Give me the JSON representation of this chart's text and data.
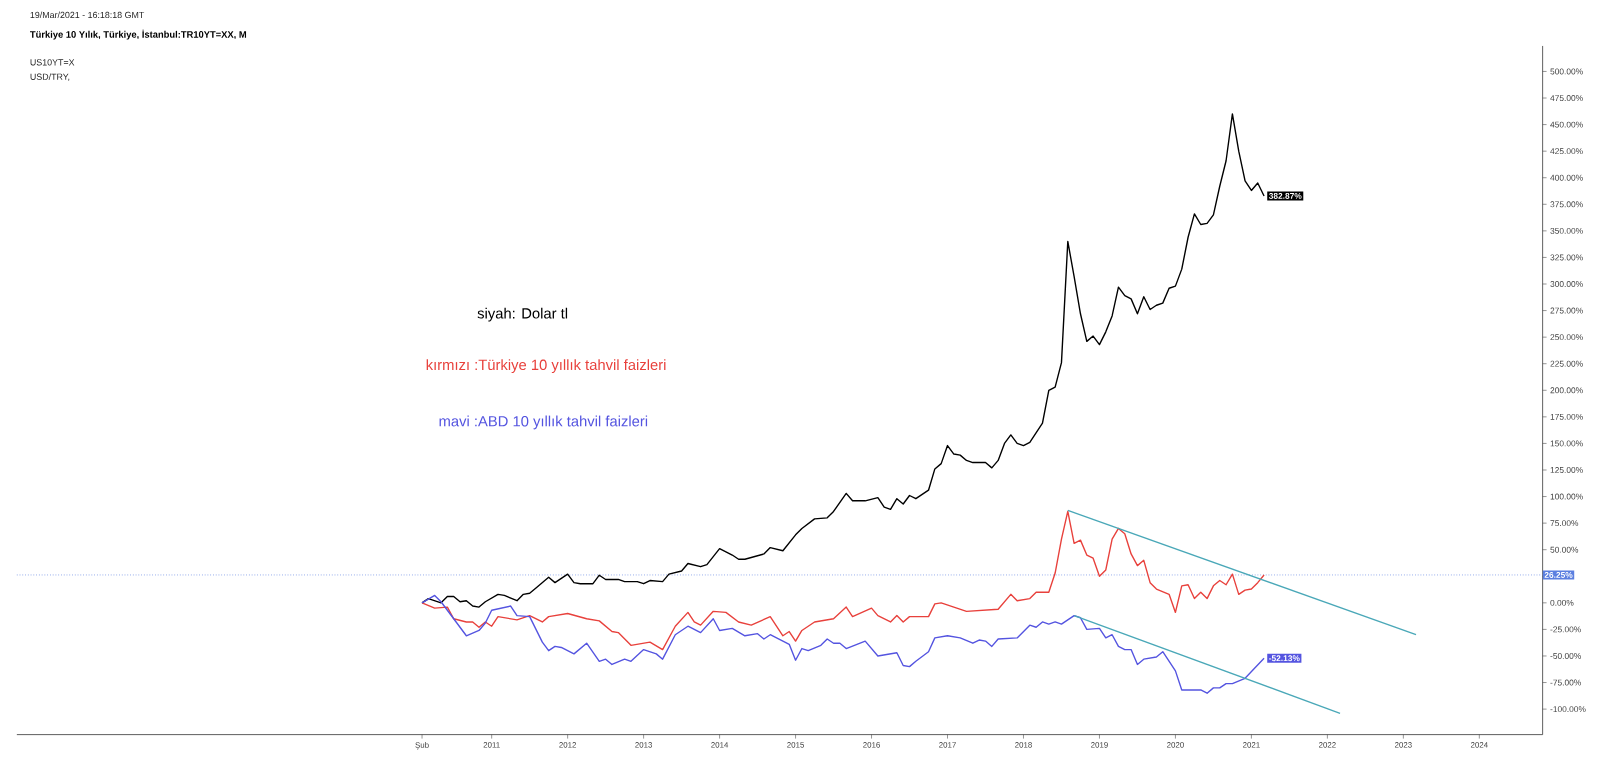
{
  "chart_data": {
    "type": "line",
    "title": "Türkiye 10 Yılık, Türkiye, İstanbul:TR10YT=XX, M",
    "annotations": [
      "19/Mar/2021 - 16:18:18 GMT",
      "US10YT=X",
      "USD/TRY,"
    ],
    "xlim": [
      "2004-10",
      "2024-11"
    ],
    "ylim": [
      -124,
      524
    ],
    "xticks": [
      {
        "value": "2010-02",
        "label": "Şub"
      },
      "2011",
      "2012",
      "2013",
      "2014",
      "2015",
      "2016",
      "2017",
      "2018",
      "2019",
      "2020",
      "2021",
      "2022",
      "2023",
      "2024"
    ],
    "yticks": [
      {
        "value": -100,
        "label": "-100.00%"
      },
      {
        "value": -75,
        "label": "-75.00%"
      },
      {
        "value": -50,
        "label": "-50.00%"
      },
      {
        "value": -25,
        "label": "-25.00%"
      },
      {
        "value": 0,
        "label": "0.00%"
      },
      {
        "value": 25,
        "label": null
      },
      {
        "value": 50,
        "label": "50.00%"
      },
      {
        "value": 75,
        "label": "75.00%"
      },
      {
        "value": 100,
        "label": "100.00%"
      },
      {
        "value": 125,
        "label": "125.00%"
      },
      {
        "value": 150,
        "label": "150.00%"
      },
      {
        "value": 175,
        "label": "175.00%"
      },
      {
        "value": 200,
        "label": "200.00%"
      },
      {
        "value": 225,
        "label": "225.00%"
      },
      {
        "value": 250,
        "label": "250.00%"
      },
      {
        "value": 275,
        "label": "275.00%"
      },
      {
        "value": 300,
        "label": "300.00%"
      },
      {
        "value": 325,
        "label": "325.00%"
      },
      {
        "value": 350,
        "label": "350.00%"
      },
      {
        "value": 375,
        "label": "375.00%"
      },
      {
        "value": 400,
        "label": "400.00%"
      },
      {
        "value": 425,
        "label": "425.00%"
      },
      {
        "value": 450,
        "label": "450.00%"
      },
      {
        "value": 475,
        "label": "475.00%"
      },
      {
        "value": 500,
        "label": "500.00%"
      }
    ],
    "grid": false,
    "marker": "none",
    "line_style": "solid",
    "ref_lines": [
      {
        "axis": "y",
        "value": 26.25,
        "label": "26.25%",
        "color": "#5b7fe0",
        "line_style": "dotted"
      }
    ],
    "series": [
      {
        "name": "siyah: Dolar tl",
        "color": "#000000",
        "x": [
          "2010-02",
          "2010-03",
          "2010-05",
          "2010-06",
          "2010-07",
          "2010-08",
          "2010-09",
          "2010-10",
          "2010-11",
          "2010-12",
          "2011-02",
          "2011-03",
          "2011-05",
          "2011-06",
          "2011-07",
          "2011-08",
          "2011-10",
          "2011-11",
          "2012-01",
          "2012-02",
          "2012-03",
          "2012-05",
          "2012-06",
          "2012-07",
          "2012-09",
          "2012-10",
          "2012-12",
          "2013-01",
          "2013-02",
          "2013-04",
          "2013-05",
          "2013-07",
          "2013-08",
          "2013-10",
          "2013-11",
          "2014-01",
          "2014-03",
          "2014-04",
          "2014-05",
          "2014-08",
          "2014-09",
          "2014-11",
          "2015-01",
          "2015-02",
          "2015-04",
          "2015-06",
          "2015-07",
          "2015-09",
          "2015-10",
          "2015-12",
          "2016-02",
          "2016-03",
          "2016-04",
          "2016-05",
          "2016-06",
          "2016-07",
          "2016-08",
          "2016-09",
          "2016-10",
          "2016-11",
          "2016-12",
          "2017-01",
          "2017-02",
          "2017-03",
          "2017-04",
          "2017-05",
          "2017-07",
          "2017-08",
          "2017-09",
          "2017-10",
          "2017-11",
          "2017-12",
          "2018-01",
          "2018-02",
          "2018-04",
          "2018-05",
          "2018-06",
          "2018-07",
          "2018-08",
          "2018-09",
          "2018-10",
          "2018-11",
          "2018-12",
          "2019-01",
          "2019-02",
          "2019-03",
          "2019-04",
          "2019-05",
          "2019-06",
          "2019-07",
          "2019-08",
          "2019-09",
          "2019-10",
          "2019-11",
          "2019-12",
          "2020-01",
          "2020-02",
          "2020-03",
          "2020-04",
          "2020-05",
          "2020-06",
          "2020-07",
          "2020-08",
          "2020-09",
          "2020-10",
          "2020-11",
          "2020-12",
          "2021-01",
          "2021-02",
          "2021-03"
        ],
        "values": [
          0,
          4,
          0,
          6,
          6,
          1,
          2,
          -3,
          -4,
          1,
          8,
          7,
          2,
          8,
          9,
          14,
          24,
          19,
          27,
          19,
          18,
          18,
          26,
          22,
          22,
          20,
          20,
          18,
          21,
          20,
          27,
          30,
          37,
          34,
          36,
          51,
          45,
          41,
          41,
          46,
          52,
          49,
          64,
          70,
          79,
          80,
          86,
          103,
          96,
          96,
          99,
          90,
          88,
          98,
          93,
          101,
          98,
          102,
          106,
          126,
          131,
          148,
          140,
          139,
          134,
          132,
          132,
          127,
          134,
          150,
          158,
          150,
          148,
          151,
          169,
          200,
          203,
          226,
          340,
          307,
          272,
          246,
          251,
          243,
          255,
          270,
          297,
          289,
          286,
          272,
          288,
          276,
          280,
          282,
          296,
          298,
          314,
          344,
          366,
          356,
          357,
          365,
          392,
          416,
          460,
          425,
          397,
          388,
          395,
          382.87
        ],
        "value_labels": [
          null,
          null,
          null,
          null,
          null,
          null,
          null,
          null,
          null,
          null,
          null,
          null,
          null,
          null,
          null,
          null,
          null,
          null,
          null,
          null,
          null,
          null,
          null,
          null,
          null,
          null,
          null,
          null,
          null,
          null,
          null,
          null,
          null,
          null,
          null,
          null,
          null,
          null,
          null,
          null,
          null,
          null,
          null,
          null,
          null,
          null,
          null,
          null,
          null,
          null,
          null,
          null,
          null,
          null,
          null,
          null,
          null,
          null,
          null,
          null,
          null,
          null,
          null,
          null,
          null,
          null,
          null,
          null,
          null,
          null,
          null,
          null,
          null,
          null,
          null,
          null,
          null,
          null,
          null,
          null,
          null,
          null,
          null,
          null,
          null,
          null,
          null,
          null,
          null,
          null,
          null,
          null,
          null,
          null,
          null,
          null,
          null,
          null,
          null,
          null,
          null,
          null,
          null,
          null,
          null,
          null,
          null,
          null,
          null,
          "382.87%"
        ]
      },
      {
        "name": "kırmızı :Türkiye 10 yıllık tahvil faizleri",
        "color": "#e8413c",
        "x": [
          "2010-02",
          "2010-04",
          "2010-06",
          "2010-07",
          "2010-09",
          "2010-10",
          "2010-11",
          "2010-12",
          "2011-01",
          "2011-02",
          "2011-05",
          "2011-07",
          "2011-09",
          "2011-10",
          "2012-01",
          "2012-04",
          "2012-06",
          "2012-08",
          "2012-09",
          "2012-11",
          "2013-02",
          "2013-04",
          "2013-06",
          "2013-08",
          "2013-09",
          "2013-10",
          "2013-12",
          "2014-02",
          "2014-04",
          "2014-06",
          "2014-09",
          "2014-11",
          "2014-12",
          "2015-01",
          "2015-02",
          "2015-04",
          "2015-07",
          "2015-09",
          "2015-10",
          "2016-01",
          "2016-02",
          "2016-04",
          "2016-05",
          "2016-06",
          "2016-07",
          "2016-10",
          "2016-11",
          "2016-12",
          "2017-02",
          "2017-04",
          "2017-09",
          "2017-11",
          "2017-12",
          "2018-02",
          "2018-03",
          "2018-05",
          "2018-06",
          "2018-07",
          "2018-08",
          "2018-09",
          "2018-10",
          "2018-11",
          "2018-12",
          "2019-01",
          "2019-02",
          "2019-03",
          "2019-04",
          "2019-05",
          "2019-06",
          "2019-07",
          "2019-08",
          "2019-09",
          "2019-10",
          "2019-12",
          "2020-01",
          "2020-02",
          "2020-03",
          "2020-04",
          "2020-05",
          "2020-06",
          "2020-07",
          "2020-08",
          "2020-09",
          "2020-10",
          "2020-11",
          "2020-12",
          "2021-01",
          "2021-02",
          "2021-03"
        ],
        "values": [
          0,
          -5,
          -4,
          -15,
          -18,
          -18,
          -23,
          -18,
          -22,
          -13,
          -16,
          -12,
          -18,
          -13,
          -10,
          -15,
          -17,
          -27,
          -28,
          -40,
          -37,
          -44,
          -22,
          -9,
          -18,
          -21,
          -8,
          -9,
          -18,
          -21,
          -13,
          -31,
          -27,
          -36,
          -26,
          -18,
          -15,
          -4,
          -13,
          -5,
          -12,
          -18,
          -12,
          -18,
          -13,
          -13,
          -1,
          0,
          -4,
          -8,
          -6,
          8,
          2,
          4,
          10,
          10,
          28,
          60,
          86,
          56,
          59,
          45,
          42,
          25,
          31,
          60,
          70,
          65,
          46,
          35,
          40,
          19,
          13,
          8,
          -9,
          16,
          17,
          4,
          10,
          4,
          16,
          21,
          17,
          27,
          8,
          12,
          13,
          19,
          26.25
        ]
      },
      {
        "name": "mavi :ABD 10 yıllık tahvil faizleri",
        "color": "#5454e0",
        "x": [
          "2010-02",
          "2010-04",
          "2010-05",
          "2010-07",
          "2010-09",
          "2010-11",
          "2010-12",
          "2011-01",
          "2011-04",
          "2011-05",
          "2011-07",
          "2011-09",
          "2011-10",
          "2011-11",
          "2011-12",
          "2012-02",
          "2012-04",
          "2012-06",
          "2012-07",
          "2012-08",
          "2012-10",
          "2012-11",
          "2013-01",
          "2013-03",
          "2013-04",
          "2013-06",
          "2013-08",
          "2013-10",
          "2013-12",
          "2014-01",
          "2014-03",
          "2014-05",
          "2014-07",
          "2014-08",
          "2014-09",
          "2014-12",
          "2015-01",
          "2015-02",
          "2015-03",
          "2015-05",
          "2015-06",
          "2015-07",
          "2015-08",
          "2015-09",
          "2015-12",
          "2016-02",
          "2016-05",
          "2016-06",
          "2016-07",
          "2016-08",
          "2016-10",
          "2016-11",
          "2017-01",
          "2017-03",
          "2017-05",
          "2017-06",
          "2017-07",
          "2017-08",
          "2017-09",
          "2017-12",
          "2018-02",
          "2018-03",
          "2018-04",
          "2018-05",
          "2018-06",
          "2018-07",
          "2018-09",
          "2018-10",
          "2018-11",
          "2019-01",
          "2019-02",
          "2019-03",
          "2019-04",
          "2019-05",
          "2019-06",
          "2019-07",
          "2019-08",
          "2019-10",
          "2019-11",
          "2020-01",
          "2020-02",
          "2020-05",
          "2020-06",
          "2020-07",
          "2020-08",
          "2020-09",
          "2020-10",
          "2020-12",
          "2021-03"
        ],
        "values": [
          0,
          7,
          1,
          -15,
          -31,
          -26,
          -19,
          -7,
          -3,
          -12,
          -13,
          -37,
          -45,
          -41,
          -42,
          -48,
          -38,
          -55,
          -53,
          -58,
          -53,
          -55,
          -44,
          -48,
          -53,
          -30,
          -22,
          -28,
          -15,
          -26,
          -24,
          -31,
          -29,
          -34,
          -30,
          -39,
          -54,
          -43,
          -45,
          -40,
          -34,
          -38,
          -38,
          -43,
          -36,
          -50,
          -47,
          -59,
          -60,
          -55,
          -46,
          -33,
          -31,
          -33,
          -38,
          -35,
          -36,
          -41,
          -34,
          -33,
          -21,
          -23,
          -18,
          -20,
          -18,
          -20,
          -12,
          -14,
          -25,
          -24,
          -33,
          -30,
          -41,
          -44,
          -44,
          -58,
          -53,
          -51,
          -46,
          -64,
          -82,
          -82,
          -85,
          -80,
          -80,
          -76,
          -76,
          -71,
          -52.13
        ],
        "value_labels": [
          null,
          null,
          null,
          null,
          null,
          null,
          null,
          null,
          null,
          null,
          null,
          null,
          null,
          null,
          null,
          null,
          null,
          null,
          null,
          null,
          null,
          null,
          null,
          null,
          null,
          null,
          null,
          null,
          null,
          null,
          null,
          null,
          null,
          null,
          null,
          null,
          null,
          null,
          null,
          null,
          null,
          null,
          null,
          null,
          null,
          null,
          null,
          null,
          null,
          null,
          null,
          null,
          null,
          null,
          null,
          null,
          null,
          null,
          null,
          null,
          null,
          null,
          null,
          null,
          null,
          null,
          null,
          null,
          null,
          null,
          null,
          null,
          null,
          null,
          null,
          null,
          null,
          null,
          null,
          null,
          null,
          null,
          null,
          null,
          null,
          null,
          null,
          null,
          "-52.13%"
        ]
      },
      {
        "type": "line",
        "color": "#4aa8b8",
        "x": [
          "2018-08",
          "2023-03"
        ],
        "values": [
          87,
          -30
        ]
      },
      {
        "type": "line",
        "color": "#4aa8b8",
        "x": [
          "2018-09",
          "2022-03"
        ],
        "values": [
          -12,
          -104
        ]
      }
    ]
  }
}
